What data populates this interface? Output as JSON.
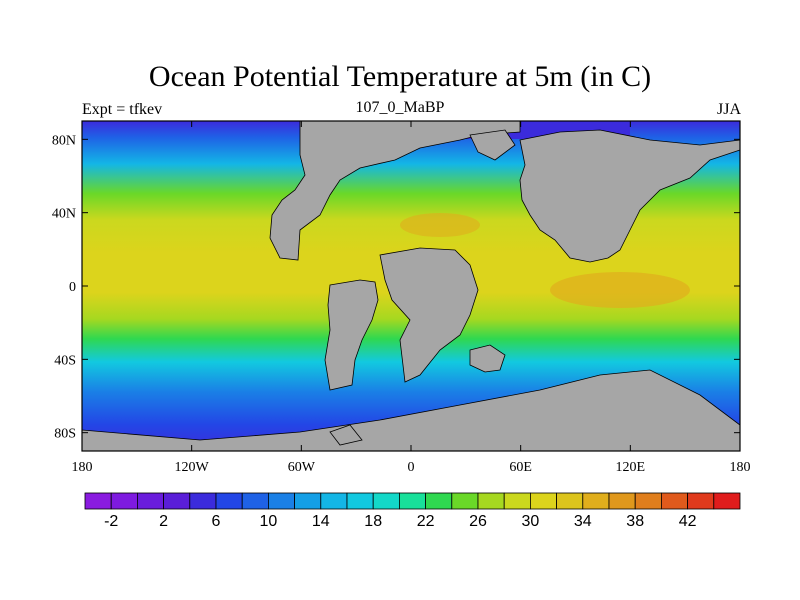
{
  "title": "Ocean Potential Temperature at 5m (in C)",
  "left_string": "Expt = tfkev",
  "center_string": "107_0_MaBP",
  "right_string": "JJA",
  "lat_ticks": [
    "80N",
    "40N",
    "0",
    "40S",
    "80S"
  ],
  "lon_ticks": [
    "180",
    "120W",
    "60W",
    "0",
    "60E",
    "120E",
    "180"
  ],
  "colorbar": {
    "labels": [
      "-2",
      "2",
      "6",
      "10",
      "14",
      "18",
      "22",
      "26",
      "30",
      "34",
      "38",
      "42"
    ],
    "colors": [
      "#8a1be0",
      "#7e1ae0",
      "#6a1cdc",
      "#5a1ed8",
      "#3b2bdc",
      "#2346e6",
      "#1f62e6",
      "#1a80e6",
      "#149fe6",
      "#13b6e6",
      "#12c9e0",
      "#13d8c8",
      "#18e09a",
      "#2fd850",
      "#6ad828",
      "#a6d820",
      "#cbd81e",
      "#dcd41c",
      "#dcc41c",
      "#e0ae1c",
      "#e0981c",
      "#e07e1c",
      "#e05a1c",
      "#e03a1c",
      "#e01c1c"
    ]
  },
  "chart_data": {
    "type": "heatmap",
    "title": "Ocean Potential Temperature at 5m (in C)",
    "x_ticks": [
      "180",
      "120W",
      "60W",
      "0",
      "60E",
      "120E",
      "180"
    ],
    "y_ticks": [
      "80N",
      "40N",
      "0",
      "40S",
      "80S"
    ],
    "xlim": [
      -180,
      180
    ],
    "ylim": [
      -90,
      90
    ],
    "units": "C",
    "land_color": "#a6a6a6",
    "colorbar_levels": [
      -2,
      2,
      6,
      10,
      14,
      18,
      22,
      26,
      30,
      34,
      38,
      42
    ]
  }
}
